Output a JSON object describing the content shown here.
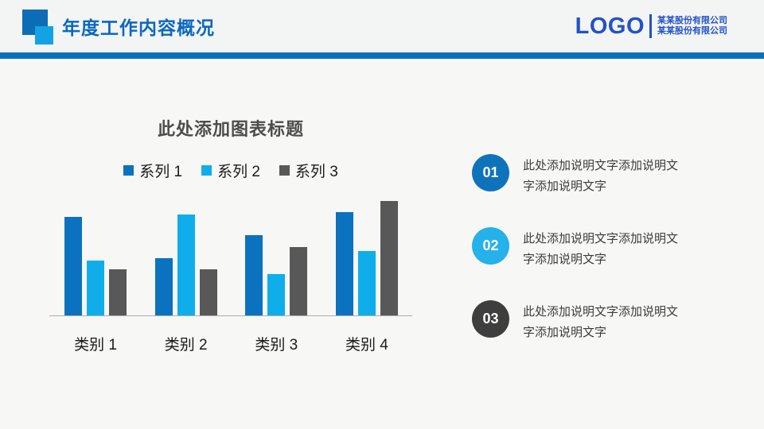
{
  "header": {
    "title": "年度工作内容概况",
    "logo_text": "LOGO",
    "company_lines": [
      "某某股份有限公司",
      "某某股份有限公司"
    ]
  },
  "chart_data": {
    "type": "bar",
    "title": "此处添加图表标题",
    "categories": [
      "类别 1",
      "类别 2",
      "类别 3",
      "类别 4"
    ],
    "series": [
      {
        "name": "系列 1",
        "color": "#0A72BE",
        "values": [
          4.3,
          2.5,
          3.5,
          4.5
        ]
      },
      {
        "name": "系列 2",
        "color": "#0FAEEB",
        "values": [
          2.4,
          4.4,
          1.8,
          2.8
        ]
      },
      {
        "name": "系列 3",
        "color": "#585858",
        "values": [
          2.0,
          2.0,
          3.0,
          5.0
        ]
      }
    ],
    "xlabel": "",
    "ylabel": "",
    "ylim": [
      0,
      5
    ],
    "grid": false,
    "value_axis_visible": false,
    "legend_position": "top"
  },
  "notes": [
    {
      "number": "01",
      "badge_color": "#0F73BC",
      "text": "此处添加说明文字添加说明文字添加说明文字"
    },
    {
      "number": "02",
      "badge_color": "#25B1EA",
      "text": "此处添加说明文字添加说明文字添加说明文字"
    },
    {
      "number": "03",
      "badge_color": "#3E3E3E",
      "text": "此处添加说明文字添加说明文字添加说明文字"
    }
  ],
  "colors": {
    "accent_divider": "#0A70BE",
    "header_title": "#0A68BE",
    "logo_blue": "#2152C8",
    "icon_dark": "#0C6CB6",
    "icon_light": "#14A3E2",
    "axis_line": "#ADADAD",
    "slide_bg": "#F7F7F6",
    "header_bg": "#F3F4F4",
    "chart_title_color": "#4D4D4D",
    "text_dark": "#1A1A1A",
    "note_text": "#3C3C3C"
  }
}
